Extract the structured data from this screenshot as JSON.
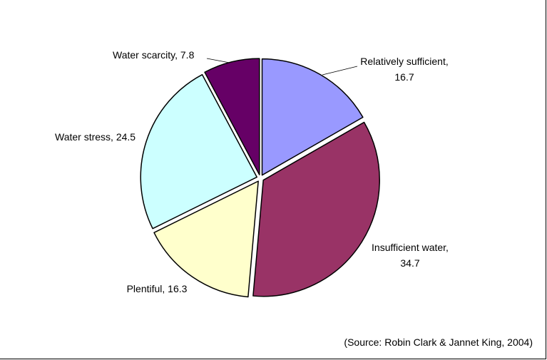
{
  "chart_data": {
    "type": "pie",
    "title": "",
    "slices": [
      {
        "label": "Relatively sufficient",
        "value": 16.7,
        "color": "#9999ff"
      },
      {
        "label": "Insufficient water",
        "value": 34.7,
        "color": "#993366"
      },
      {
        "label": "Plentiful",
        "value": 16.3,
        "color": "#ffffcc"
      },
      {
        "label": "Water stress",
        "value": 24.5,
        "color": "#ccffff"
      },
      {
        "label": "Water scarcity",
        "value": 7.8,
        "color": "#660066"
      }
    ],
    "data_labels": [
      {
        "lines": [
          "Relatively sufficient,",
          "16.7"
        ]
      },
      {
        "lines": [
          "Insufficient water,",
          "34.7"
        ]
      },
      {
        "lines": [
          "Plentiful, 16.3"
        ]
      },
      {
        "lines": [
          "Water stress, 24.5"
        ]
      },
      {
        "lines": [
          "Water scarcity, 7.8"
        ]
      }
    ],
    "legend": "none",
    "exploded": true
  },
  "source_note": "(Source: Robin Clark & Jannet King, 2004)"
}
